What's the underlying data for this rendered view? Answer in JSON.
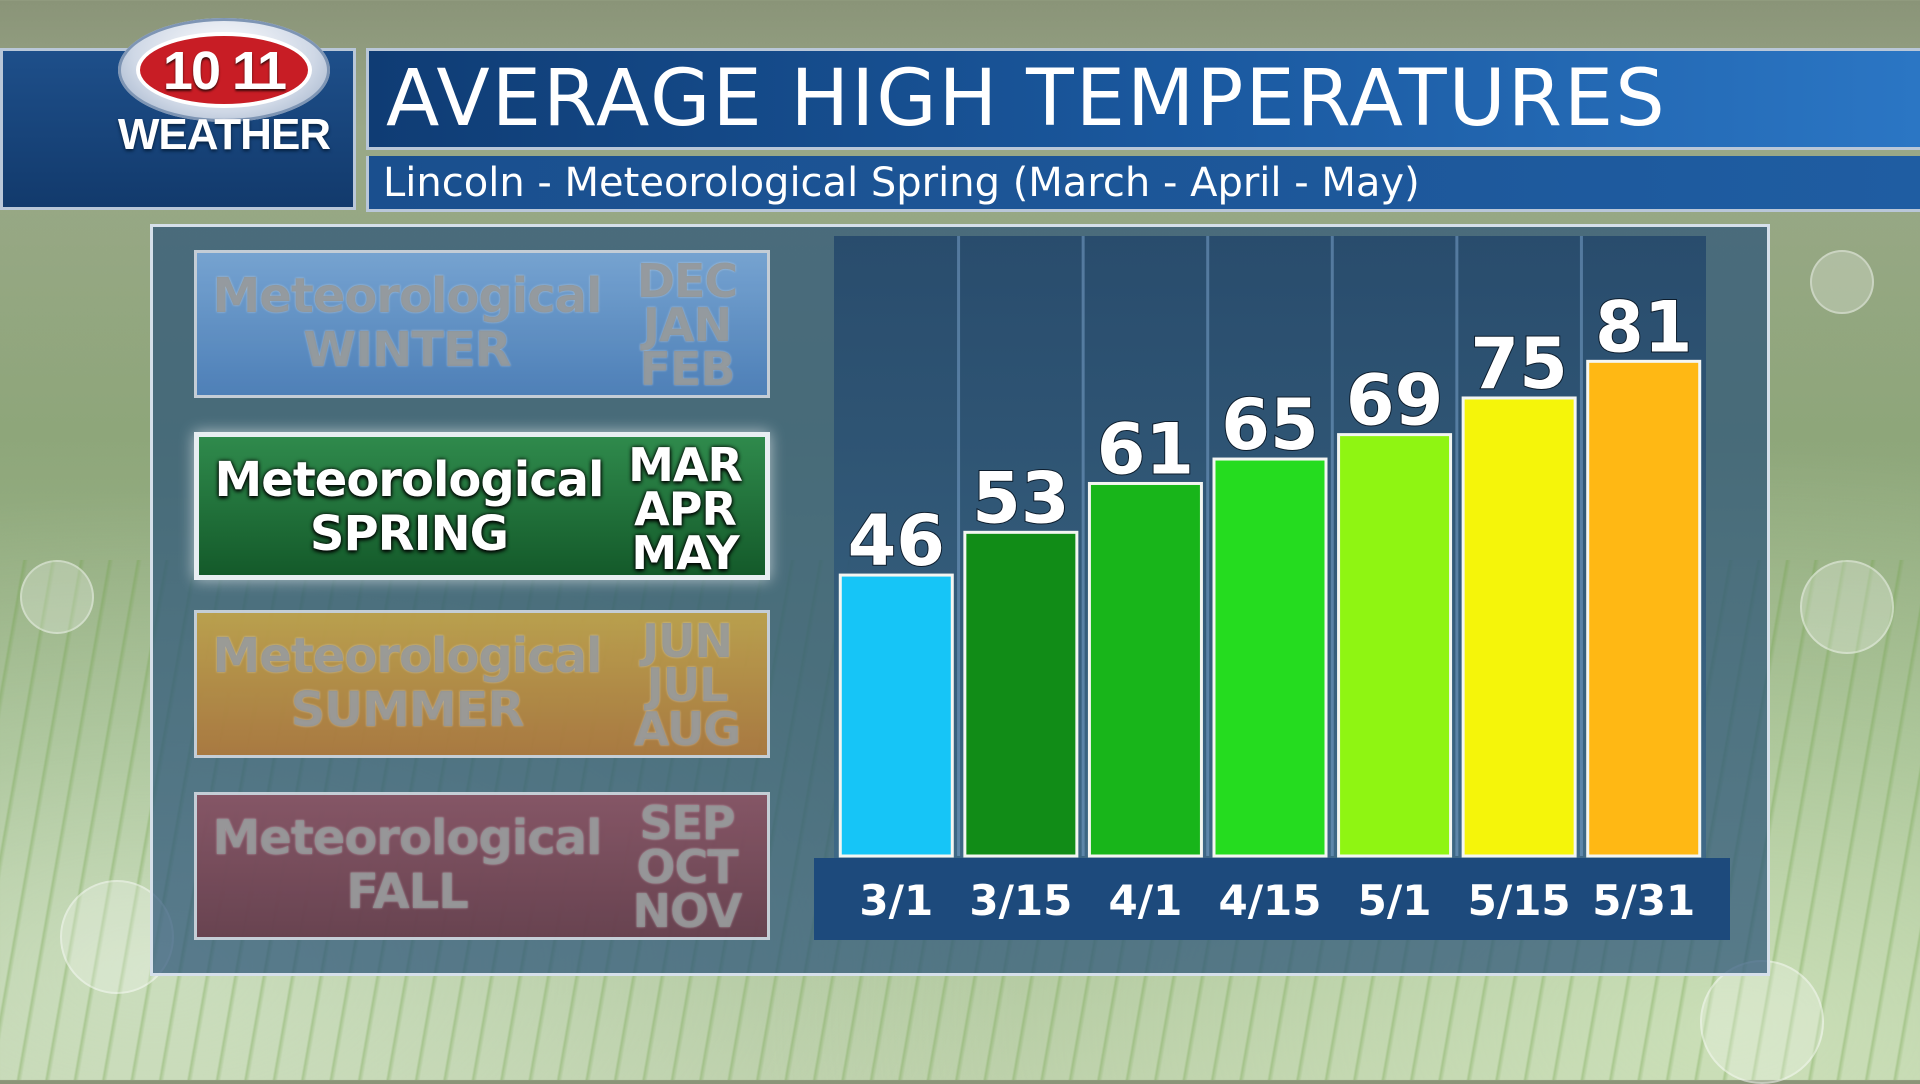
{
  "header": {
    "logo_number": "10 11",
    "logo_label": "WEATHER",
    "title": "AVERAGE HIGH TEMPERATURES",
    "subtitle": "Lincoln - Meteorological Spring (March - April - May)"
  },
  "seasons": [
    {
      "name_line1": "Meteorological",
      "name_line2": "WINTER",
      "months": [
        "DEC",
        "JAN",
        "FEB"
      ],
      "active": false,
      "color": "#5b8fc7"
    },
    {
      "name_line1": "Meteorological",
      "name_line2": "SPRING",
      "months": [
        "MAR",
        "APR",
        "MAY"
      ],
      "active": true,
      "color": "#1d6b35"
    },
    {
      "name_line1": "Meteorological",
      "name_line2": "SUMMER",
      "months": [
        "JUN",
        "JUL",
        "AUG"
      ],
      "active": false,
      "color": "#b58c3a"
    },
    {
      "name_line1": "Meteorological",
      "name_line2": "FALL",
      "months": [
        "SEP",
        "OCT",
        "NOV"
      ],
      "active": false,
      "color": "#7a4a5a"
    }
  ],
  "chart_data": {
    "type": "bar",
    "title": "AVERAGE HIGH TEMPERATURES",
    "categories": [
      "3/1",
      "3/15",
      "4/1",
      "4/15",
      "5/1",
      "5/15",
      "5/31"
    ],
    "values": [
      46,
      53,
      61,
      65,
      69,
      75,
      81
    ],
    "colors": [
      "#16c5f7",
      "#118c17",
      "#18b51a",
      "#25dc1f",
      "#8ff512",
      "#f5f50a",
      "#ffb814"
    ],
    "ylim": [
      0,
      100
    ],
    "grid": false,
    "legend": "none"
  }
}
